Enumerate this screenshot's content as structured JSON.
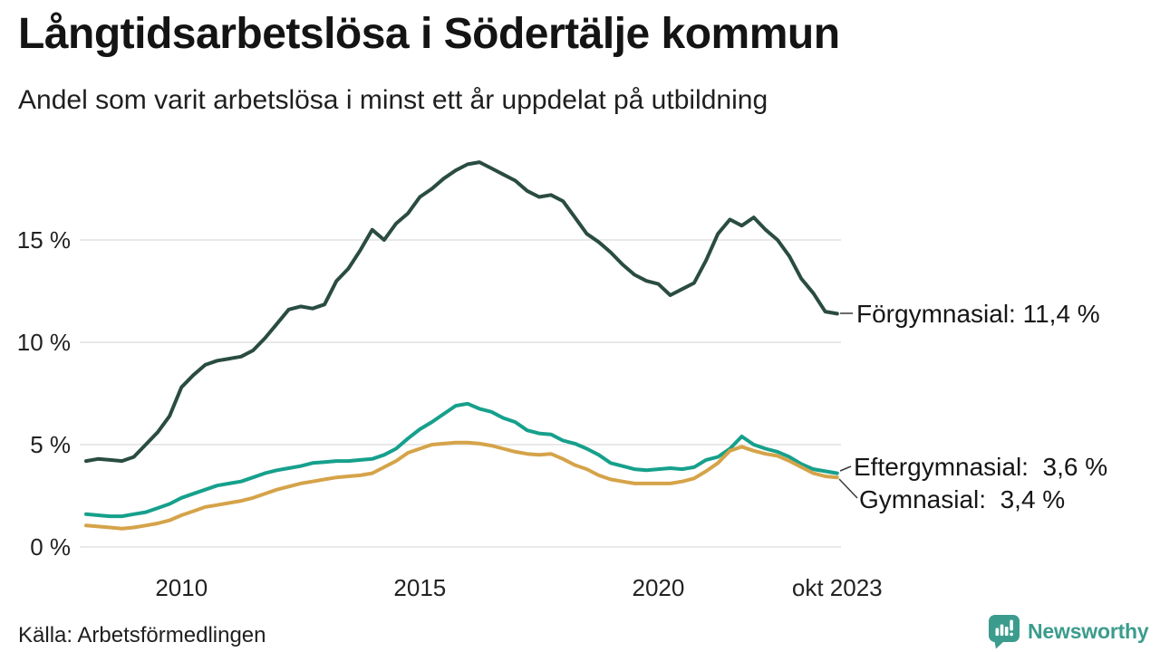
{
  "chart_data": {
    "type": "line",
    "title": "Långtidsarbetslösa i Södertälje kommun",
    "subtitle": "Andel som varit arbetslösa i minst ett år uppdelat på utbildning",
    "x_unit": "decimal_year_monthly_series",
    "xlim": [
      2008.0,
      2023.83
    ],
    "ylim": [
      0,
      19
    ],
    "grid": true,
    "legend_position": "end-labels-right",
    "y_ticks": [
      {
        "v": 0,
        "label": "0 %"
      },
      {
        "v": 5,
        "label": "5 %"
      },
      {
        "v": 10,
        "label": "10 %"
      },
      {
        "v": 15,
        "label": "15 %"
      }
    ],
    "x_ticks": [
      {
        "t": 2010,
        "label": "2010"
      },
      {
        "t": 2015,
        "label": "2015"
      },
      {
        "t": 2020,
        "label": "2020"
      },
      {
        "t": 2023.75,
        "label": "okt 2023"
      }
    ],
    "x": [
      2008.0,
      2008.25,
      2008.5,
      2008.75,
      2009.0,
      2009.25,
      2009.5,
      2009.75,
      2010.0,
      2010.25,
      2010.5,
      2010.75,
      2011.0,
      2011.25,
      2011.5,
      2011.75,
      2012.0,
      2012.25,
      2012.5,
      2012.75,
      2013.0,
      2013.25,
      2013.5,
      2013.75,
      2014.0,
      2014.25,
      2014.5,
      2014.75,
      2015.0,
      2015.25,
      2015.5,
      2015.75,
      2016.0,
      2016.25,
      2016.5,
      2016.75,
      2017.0,
      2017.25,
      2017.5,
      2017.75,
      2018.0,
      2018.25,
      2018.5,
      2018.75,
      2019.0,
      2019.25,
      2019.5,
      2019.75,
      2020.0,
      2020.25,
      2020.5,
      2020.75,
      2021.0,
      2021.25,
      2021.5,
      2021.75,
      2022.0,
      2022.25,
      2022.5,
      2022.75,
      2023.0,
      2023.25,
      2023.5,
      2023.75
    ],
    "series": [
      {
        "name": "Förgymnasial",
        "color": "#2a4c42",
        "end_value": "11,4 %",
        "end_label": "Förgymnasial: 11,4 %",
        "values": [
          4.2,
          4.3,
          4.25,
          4.2,
          4.4,
          5.0,
          5.6,
          6.4,
          7.8,
          8.4,
          8.9,
          9.1,
          9.2,
          9.3,
          9.6,
          10.2,
          10.9,
          11.6,
          11.75,
          11.65,
          11.85,
          13.0,
          13.6,
          14.5,
          15.5,
          15.0,
          15.8,
          16.3,
          17.1,
          17.5,
          18.0,
          18.4,
          18.7,
          18.8,
          18.5,
          18.2,
          17.9,
          17.4,
          17.1,
          17.2,
          16.9,
          16.1,
          15.3,
          14.9,
          14.4,
          13.8,
          13.3,
          13.0,
          12.85,
          12.3,
          12.6,
          12.9,
          14.0,
          15.3,
          16.0,
          15.7,
          16.1,
          15.5,
          15.0,
          14.2,
          13.1,
          12.4,
          11.5,
          11.4
        ]
      },
      {
        "name": "Eftergymnasial",
        "color": "#16a08c",
        "end_value": "3,6 %",
        "end_label": "Eftergymnasial:  3,6 %",
        "values": [
          1.6,
          1.55,
          1.5,
          1.5,
          1.6,
          1.7,
          1.9,
          2.1,
          2.4,
          2.6,
          2.8,
          3.0,
          3.1,
          3.2,
          3.4,
          3.6,
          3.75,
          3.85,
          3.95,
          4.1,
          4.15,
          4.2,
          4.2,
          4.25,
          4.3,
          4.5,
          4.8,
          5.3,
          5.75,
          6.1,
          6.5,
          6.9,
          7.0,
          6.75,
          6.6,
          6.3,
          6.1,
          5.7,
          5.55,
          5.5,
          5.2,
          5.05,
          4.8,
          4.5,
          4.1,
          3.95,
          3.8,
          3.75,
          3.8,
          3.85,
          3.8,
          3.9,
          4.25,
          4.4,
          4.8,
          5.4,
          5.0,
          4.8,
          4.65,
          4.4,
          4.05,
          3.8,
          3.7,
          3.6
        ]
      },
      {
        "name": "Gymnasial",
        "color": "#d5a349",
        "end_value": "3,4 %",
        "end_label": "Gymnasial:  3,4 %",
        "values": [
          1.05,
          1.0,
          0.95,
          0.9,
          0.95,
          1.05,
          1.15,
          1.3,
          1.55,
          1.75,
          1.95,
          2.05,
          2.15,
          2.25,
          2.4,
          2.6,
          2.8,
          2.95,
          3.1,
          3.2,
          3.3,
          3.4,
          3.45,
          3.5,
          3.6,
          3.9,
          4.2,
          4.6,
          4.8,
          5.0,
          5.05,
          5.1,
          5.1,
          5.05,
          4.95,
          4.8,
          4.65,
          4.55,
          4.5,
          4.55,
          4.3,
          4.0,
          3.8,
          3.5,
          3.3,
          3.2,
          3.1,
          3.1,
          3.1,
          3.1,
          3.2,
          3.35,
          3.7,
          4.1,
          4.7,
          4.9,
          4.7,
          4.55,
          4.45,
          4.2,
          3.9,
          3.6,
          3.45,
          3.4
        ]
      }
    ]
  },
  "footer": {
    "source": "Källa: Arbetsförmedlingen",
    "brand": "Newsworthy"
  },
  "colors": {
    "forgymnasial": "#2a4c42",
    "eftergymnasial": "#16a08c",
    "gymnasial": "#d5a349",
    "gridline": "#e9e9e9",
    "brand_teal": "#3b9c8d"
  }
}
